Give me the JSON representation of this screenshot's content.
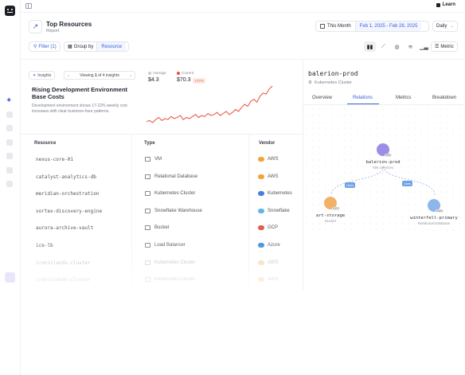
{
  "topbar": {
    "learn_label": "Learn"
  },
  "header": {
    "title": "Top Resources",
    "subtitle": "Report"
  },
  "date": {
    "preset": "This Month",
    "range": "Feb 1, 2025 - Feb 28, 2025",
    "granularity": "Daily"
  },
  "toolbar": {
    "filter_label": "Filter (1)",
    "groupby_label": "Group by",
    "groupby_value": "Resource",
    "metric_label": "Metric"
  },
  "insights": {
    "tag": "Insights",
    "viewing_prefix": "Viewing",
    "viewing_index": "1",
    "viewing_suffix": "of 4 insights",
    "title": "Rising Development Environment Base Costs",
    "description": "Development environment shows 17-22% weekly cost increases with clear business-hour patterns.",
    "average_label": "Average",
    "average_value": "$4.3",
    "current_label": "Current",
    "current_value": "$70.3",
    "change": "+17%",
    "sparkline": [
      8,
      9,
      7,
      10,
      12,
      9,
      11,
      10,
      13,
      11,
      12,
      14,
      10,
      12,
      11,
      13,
      15,
      12,
      14,
      13,
      16,
      14,
      15,
      17,
      14,
      16,
      18,
      15,
      17,
      20,
      18,
      22,
      25,
      23,
      28,
      30,
      27,
      33,
      36,
      35,
      40,
      43
    ]
  },
  "table": {
    "headers": {
      "resource": "Resource",
      "type": "Type",
      "vendor": "Vendor"
    },
    "rows": [
      {
        "resource": "nexus-core-01",
        "type": "VM",
        "vendor": "AWS"
      },
      {
        "resource": "catalyst-analytics-db",
        "type": "Relational Database",
        "vendor": "AWS"
      },
      {
        "resource": "meridian-orchestration",
        "type": "Kubernetes Cluster",
        "vendor": "Kubernetes"
      },
      {
        "resource": "vortex-discovery-engine",
        "type": "Snowflake Warehouse",
        "vendor": "Snowflake"
      },
      {
        "resource": "aurora-archive-vault",
        "type": "Bucket",
        "vendor": "GCP"
      },
      {
        "resource": "ice-lb",
        "type": "Load Balancer",
        "vendor": "Azure"
      },
      {
        "resource": "ironislands-cluster",
        "type": "Kubernetes Cluster",
        "vendor": "AWS"
      },
      {
        "resource": "ironislands-cluster",
        "type": "Kubernetes Cluster",
        "vendor": "AWS"
      }
    ]
  },
  "panel": {
    "title": "balerion-prod",
    "subtitle": "Kubernetes Cluster",
    "tabs": [
      "Overview",
      "Relations",
      "Metrics",
      "Breakdown"
    ],
    "active_tab": "Relations",
    "nodes": {
      "center": {
        "name": "balerion-prod",
        "type": "K8s Services",
        "tag": "K8S"
      },
      "left": {
        "name": "art-storage",
        "type": "Bucket",
        "tag": "GCP"
      },
      "right": {
        "name": "winterfell-primary",
        "type": "Relational Database",
        "tag": "AWS"
      }
    },
    "edge_label": "Uses"
  },
  "colors": {
    "accent": "#3a63d6",
    "spark": "#e8503a",
    "violet": "#9b8ee8",
    "orange": "#f2b266",
    "blue": "#8fb6ea"
  }
}
